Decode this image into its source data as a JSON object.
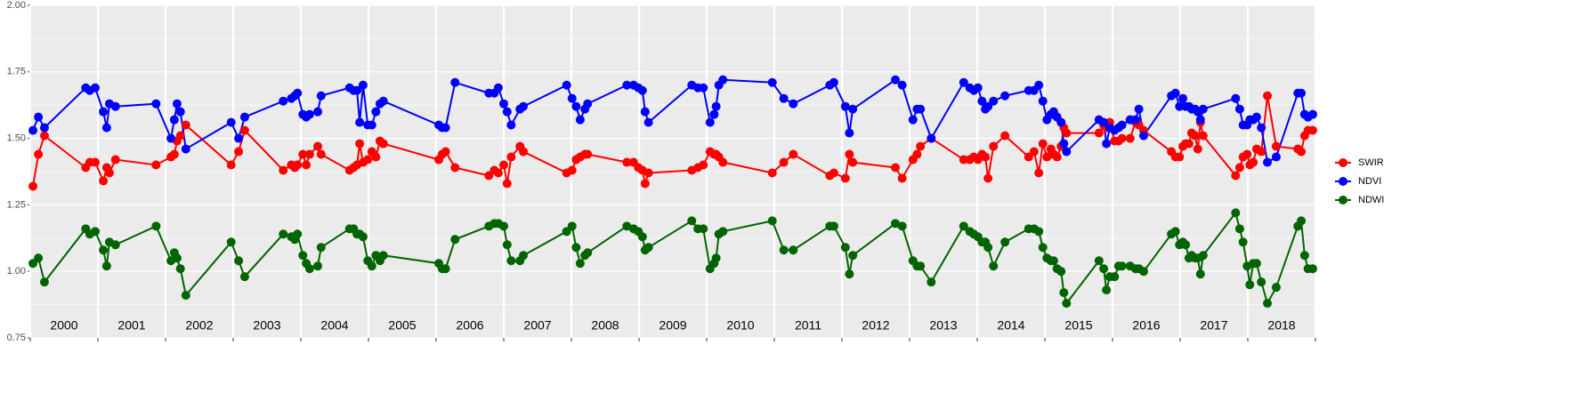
{
  "chart_data": {
    "type": "line",
    "x": [
      2000.04,
      2000.12,
      2000.21,
      2000.82,
      2000.88,
      2000.96,
      2001.08,
      2001.13,
      2001.17,
      2001.26,
      2001.86,
      2002.08,
      2002.13,
      2002.17,
      2002.22,
      2002.3,
      2002.97,
      2003.08,
      2003.17,
      2003.74,
      2003.86,
      2003.91,
      2003.95,
      2004.03,
      2004.08,
      2004.13,
      2004.25,
      2004.3,
      2004.72,
      2004.78,
      2004.83,
      2004.87,
      2004.92,
      2004.99,
      2005.05,
      2005.11,
      2005.17,
      2005.22,
      2006.04,
      2006.09,
      2006.14,
      2006.28,
      2006.78,
      2006.86,
      2006.92,
      2007.0,
      2007.05,
      2007.11,
      2007.24,
      2007.29,
      2007.93,
      2008.01,
      2008.07,
      2008.13,
      2008.2,
      2008.24,
      2008.82,
      2008.92,
      2008.99,
      2009.05,
      2009.09,
      2009.14,
      2009.78,
      2009.87,
      2009.95,
      2010.05,
      2010.11,
      2010.14,
      2010.18,
      2010.24,
      2010.97,
      2011.14,
      2011.28,
      2011.82,
      2011.88,
      2012.05,
      2012.11,
      2012.16,
      2012.79,
      2012.89,
      2013.05,
      2013.11,
      2013.16,
      2013.32,
      2013.8,
      2013.89,
      2013.95,
      2014.01,
      2014.07,
      2014.12,
      2014.16,
      2014.24,
      2014.41,
      2014.76,
      2014.84,
      2014.91,
      2014.97,
      2015.03,
      2015.09,
      2015.13,
      2015.18,
      2015.24,
      2015.28,
      2015.32,
      2015.8,
      2015.87,
      2015.91,
      2015.96,
      2016.03,
      2016.09,
      2016.14,
      2016.26,
      2016.34,
      2016.39,
      2016.46,
      2016.87,
      2016.93,
      2016.99,
      2017.04,
      2017.08,
      2017.13,
      2017.17,
      2017.22,
      2017.26,
      2017.3,
      2017.34,
      2017.82,
      2017.88,
      2017.93,
      2017.99,
      2018.03,
      2018.08,
      2018.13,
      2018.2,
      2018.29,
      2018.42,
      2018.74,
      2018.79,
      2018.84,
      2018.89,
      2018.96
    ],
    "series": [
      {
        "name": "SWIR",
        "color": "#ff0000",
        "values": [
          1.32,
          1.44,
          1.51,
          1.39,
          1.41,
          1.41,
          1.34,
          1.39,
          1.37,
          1.42,
          1.4,
          1.43,
          1.44,
          1.49,
          1.51,
          1.55,
          1.4,
          1.45,
          1.53,
          1.38,
          1.4,
          1.39,
          1.4,
          1.44,
          1.4,
          1.44,
          1.47,
          1.44,
          1.38,
          1.39,
          1.4,
          1.48,
          1.41,
          1.42,
          1.45,
          1.43,
          1.49,
          1.48,
          1.42,
          1.44,
          1.45,
          1.39,
          1.36,
          1.38,
          1.37,
          1.4,
          1.33,
          1.43,
          1.47,
          1.45,
          1.37,
          1.38,
          1.42,
          1.43,
          1.44,
          1.44,
          1.41,
          1.41,
          1.39,
          1.38,
          1.33,
          1.37,
          1.38,
          1.39,
          1.4,
          1.45,
          1.44,
          1.44,
          1.43,
          1.41,
          1.37,
          1.41,
          1.44,
          1.36,
          1.37,
          1.35,
          1.44,
          1.41,
          1.39,
          1.35,
          1.42,
          1.44,
          1.47,
          1.5,
          1.42,
          1.42,
          1.43,
          1.42,
          1.44,
          1.43,
          1.35,
          1.47,
          1.51,
          1.43,
          1.45,
          1.37,
          1.48,
          1.43,
          1.46,
          1.44,
          1.43,
          1.47,
          1.54,
          1.52,
          1.52,
          1.55,
          1.54,
          1.56,
          1.49,
          1.49,
          1.5,
          1.5,
          1.56,
          1.55,
          1.53,
          1.45,
          1.43,
          1.43,
          1.47,
          1.48,
          1.48,
          1.52,
          1.51,
          1.46,
          1.56,
          1.51,
          1.36,
          1.39,
          1.43,
          1.44,
          1.4,
          1.41,
          1.46,
          1.45,
          1.66,
          1.47,
          1.46,
          1.45,
          1.51,
          1.53,
          1.53
        ]
      },
      {
        "name": "NDVI",
        "color": "#0000ff",
        "values": [
          1.53,
          1.58,
          1.54,
          1.69,
          1.68,
          1.69,
          1.6,
          1.54,
          1.63,
          1.62,
          1.63,
          1.5,
          1.57,
          1.63,
          1.6,
          1.46,
          1.56,
          1.5,
          1.58,
          1.64,
          1.65,
          1.66,
          1.67,
          1.59,
          1.58,
          1.59,
          1.6,
          1.66,
          1.69,
          1.68,
          1.68,
          1.56,
          1.7,
          1.55,
          1.55,
          1.6,
          1.63,
          1.64,
          1.55,
          1.54,
          1.54,
          1.71,
          1.67,
          1.67,
          1.69,
          1.63,
          1.6,
          1.55,
          1.61,
          1.62,
          1.7,
          1.65,
          1.62,
          1.57,
          1.61,
          1.63,
          1.7,
          1.7,
          1.69,
          1.68,
          1.6,
          1.56,
          1.7,
          1.69,
          1.69,
          1.56,
          1.59,
          1.62,
          1.7,
          1.72,
          1.71,
          1.65,
          1.63,
          1.7,
          1.71,
          1.62,
          1.52,
          1.61,
          1.72,
          1.7,
          1.57,
          1.61,
          1.61,
          1.5,
          1.71,
          1.69,
          1.68,
          1.69,
          1.64,
          1.61,
          1.62,
          1.64,
          1.66,
          1.68,
          1.68,
          1.7,
          1.64,
          1.57,
          1.59,
          1.6,
          1.58,
          1.56,
          1.48,
          1.45,
          1.57,
          1.56,
          1.48,
          1.54,
          1.53,
          1.54,
          1.55,
          1.57,
          1.57,
          1.61,
          1.51,
          1.66,
          1.67,
          1.62,
          1.65,
          1.62,
          1.62,
          1.61,
          1.61,
          1.6,
          1.57,
          1.61,
          1.65,
          1.61,
          1.55,
          1.55,
          1.57,
          1.57,
          1.58,
          1.54,
          1.41,
          1.43,
          1.67,
          1.67,
          1.59,
          1.58,
          1.59
        ]
      },
      {
        "name": "NDWI",
        "color": "#006400",
        "values": [
          1.03,
          1.05,
          0.96,
          1.16,
          1.14,
          1.15,
          1.08,
          1.02,
          1.11,
          1.1,
          1.17,
          1.04,
          1.07,
          1.05,
          1.01,
          0.91,
          1.11,
          1.04,
          0.98,
          1.14,
          1.13,
          1.12,
          1.14,
          1.06,
          1.03,
          1.01,
          1.02,
          1.09,
          1.16,
          1.16,
          1.14,
          1.14,
          1.13,
          1.04,
          1.02,
          1.06,
          1.04,
          1.06,
          1.03,
          1.01,
          1.01,
          1.12,
          1.17,
          1.18,
          1.18,
          1.17,
          1.1,
          1.04,
          1.04,
          1.06,
          1.15,
          1.17,
          1.09,
          1.03,
          1.06,
          1.07,
          1.17,
          1.16,
          1.15,
          1.13,
          1.08,
          1.09,
          1.19,
          1.16,
          1.16,
          1.01,
          1.03,
          1.05,
          1.14,
          1.15,
          1.19,
          1.08,
          1.08,
          1.17,
          1.17,
          1.09,
          0.99,
          1.06,
          1.18,
          1.17,
          1.04,
          1.02,
          1.02,
          0.96,
          1.17,
          1.15,
          1.14,
          1.13,
          1.11,
          1.11,
          1.09,
          1.02,
          1.11,
          1.16,
          1.16,
          1.15,
          1.09,
          1.05,
          1.04,
          1.04,
          1.01,
          1.0,
          0.92,
          0.88,
          1.04,
          1.01,
          0.93,
          0.98,
          0.98,
          1.02,
          1.02,
          1.02,
          1.01,
          1.01,
          1.0,
          1.14,
          1.15,
          1.1,
          1.11,
          1.1,
          1.05,
          1.06,
          1.05,
          1.05,
          0.99,
          1.06,
          1.22,
          1.16,
          1.11,
          1.02,
          0.95,
          1.03,
          1.03,
          0.96,
          0.88,
          0.94,
          1.17,
          1.19,
          1.06,
          1.01,
          1.01
        ]
      }
    ],
    "year_labels": [
      "2000",
      "2001",
      "2002",
      "2003",
      "2004",
      "2005",
      "2006",
      "2007",
      "2008",
      "2009",
      "2010",
      "2011",
      "2012",
      "2013",
      "2014",
      "2015",
      "2016",
      "2017",
      "2018"
    ],
    "xlim": [
      2000,
      2019
    ],
    "xticks": [
      2000,
      2001,
      2002,
      2003,
      2004,
      2005,
      2006,
      2007,
      2008,
      2009,
      2010,
      2011,
      2012,
      2013,
      2014,
      2015,
      2016,
      2017,
      2018,
      2019
    ],
    "ylim": [
      0.75,
      2.0
    ],
    "yticks": [
      0.75,
      {
        "value": 1.0,
        "label": "1.00"
      },
      1.25,
      {
        "value": 1.5,
        "label": "1.50"
      },
      1.75,
      {
        "value": 2.0,
        "label": "2.00"
      }
    ],
    "grid": true
  }
}
